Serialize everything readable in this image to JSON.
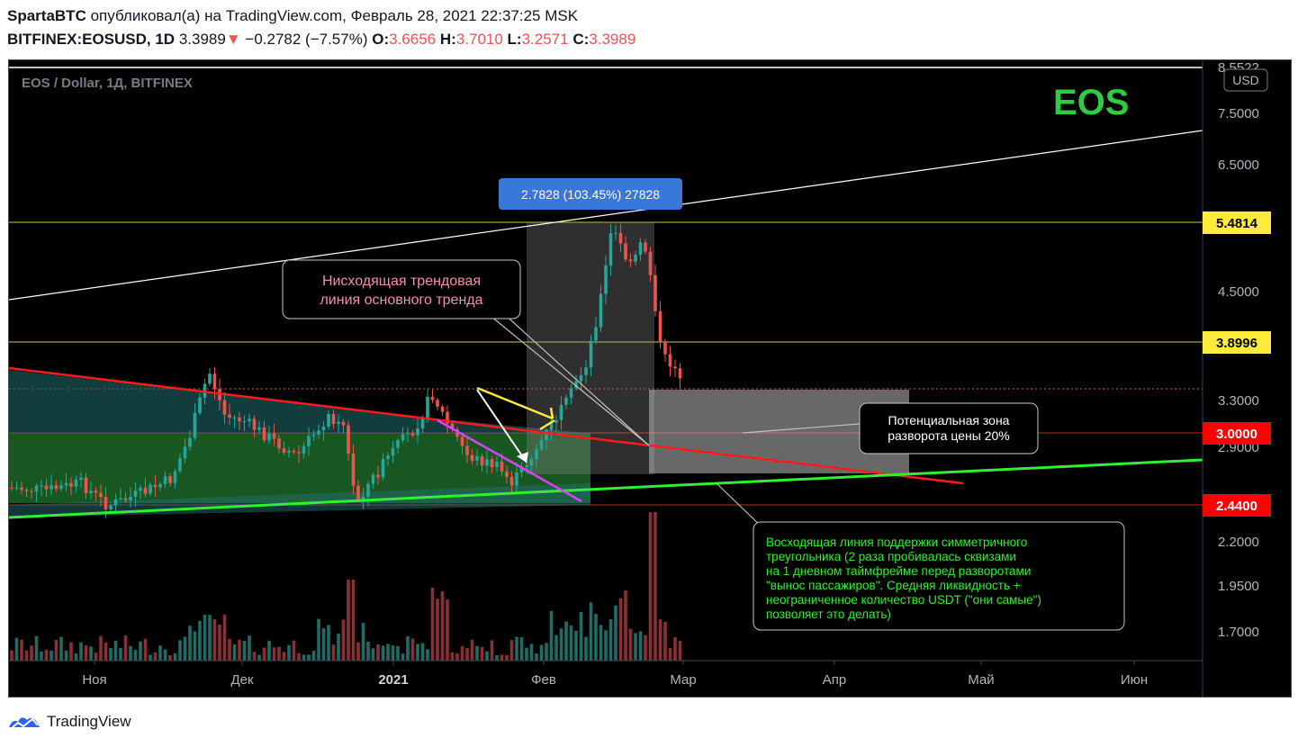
{
  "header": {
    "author": "SpartaBTC",
    "published_text": "опубликовал(а) на TradingView.com, Февраль 28, 2021 22:37:25 MSK",
    "symbol": "BITFINEX:EOSUSD, 1D",
    "last": "3.3989",
    "change_arrow": "▼",
    "change": "−0.2782 (−7.57%)",
    "open_label": "O:",
    "open": "3.6656",
    "high_label": "H:",
    "high": "3.7010",
    "low_label": "L:",
    "low": "3.2571",
    "close_label": "C:",
    "close": "3.3989"
  },
  "chart": {
    "legend": "EOS / Dollar, 1Д, BITFINEX",
    "watermark": "EOS",
    "currency_button": "USD",
    "measure_label": "2.7828 (103.45%) 27828",
    "callout_downtrend": [
      "Нисходящая трендовая",
      "линия основного тренда"
    ],
    "callout_zone": [
      "Потенциальная зона",
      "разворота цены 20%"
    ],
    "callout_support": [
      "Восходящая линия поддержки симметричного",
      "треугольника (2 раза пробивалась сквизами",
      "на 1 дневном таймфрейме перед разворотами",
      "\"вынос пассажиров\". Средняя ликвидность +",
      "неограниченное количество USDT (\"они самые\")",
      "позволяет это делать)"
    ],
    "price_axis": [
      "8.5522",
      "7.5000",
      "6.5000",
      "4.5000",
      "3.3000",
      "2.9000",
      "2.2000",
      "1.9500",
      "1.7000"
    ],
    "price_badges": [
      {
        "value": "5.4814",
        "bg": "#ffeb3b",
        "fg": "#000000"
      },
      {
        "value": "3.8996",
        "bg": "#ffeb3b",
        "fg": "#000000"
      },
      {
        "value": "3.0000",
        "bg": "#ff0000",
        "fg": "#ffffff"
      },
      {
        "value": "2.4400",
        "bg": "#ff0000",
        "fg": "#ffffff"
      }
    ],
    "time_axis": [
      "Ноя",
      "Дек",
      "2021",
      "Фев",
      "Мар",
      "Апр",
      "Май",
      "Июн"
    ],
    "colors": {
      "up": "#26a69a",
      "down": "#ef5350",
      "downtrend_line": "#ff1a1a",
      "support_line": "#33ee33",
      "watermark": "#2ecc40",
      "measure_bg": "#3a78d8"
    }
  },
  "footer": {
    "brand": "TradingView"
  }
}
